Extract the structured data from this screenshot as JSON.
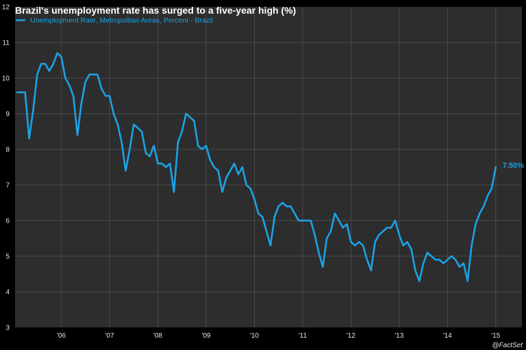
{
  "colors": {
    "background": "#000000",
    "plot_background": "#2d2d2d",
    "grid": "#4a4a4a",
    "series": "#1aa3e8",
    "text": "#e6e6e6",
    "title": "#ffffff"
  },
  "chart_data": {
    "type": "line",
    "title": "Brazil's unemployment rate has surged to a five-year high (%)",
    "xlabel": "",
    "ylabel": "",
    "ylim": [
      3,
      12
    ],
    "grid": true,
    "legend_placement": "top-left",
    "y_ticks": [
      3,
      4,
      5,
      6,
      7,
      8,
      9,
      10,
      11,
      12
    ],
    "x_ticks": [
      {
        "label": "'06",
        "at": "2006-06"
      },
      {
        "label": "'07",
        "at": "2007-06"
      },
      {
        "label": "'08",
        "at": "2008-06"
      },
      {
        "label": "'09",
        "at": "2009-06"
      },
      {
        "label": "'10",
        "at": "2010-06"
      },
      {
        "label": "'11",
        "at": "2011-06"
      },
      {
        "label": "'12",
        "at": "2012-06"
      },
      {
        "label": "'13",
        "at": "2013-06"
      },
      {
        "label": "'14",
        "at": "2014-06"
      },
      {
        "label": "'15",
        "at": "2015-06"
      }
    ],
    "end_label": "7.50%",
    "source": "@FactSet",
    "series": [
      {
        "name": "Unemployment Rate, Metropolitan Areas, Percent - Brazil",
        "x": [
          "2005-07",
          "2005-08",
          "2005-09",
          "2005-10",
          "2005-11",
          "2005-12",
          "2006-01",
          "2006-02",
          "2006-03",
          "2006-04",
          "2006-05",
          "2006-06",
          "2006-07",
          "2006-08",
          "2006-09",
          "2006-10",
          "2006-11",
          "2006-12",
          "2007-01",
          "2007-02",
          "2007-03",
          "2007-04",
          "2007-05",
          "2007-06",
          "2007-07",
          "2007-08",
          "2007-09",
          "2007-10",
          "2007-11",
          "2007-12",
          "2008-01",
          "2008-02",
          "2008-03",
          "2008-04",
          "2008-05",
          "2008-06",
          "2008-07",
          "2008-08",
          "2008-09",
          "2008-10",
          "2008-11",
          "2008-12",
          "2009-01",
          "2009-02",
          "2009-03",
          "2009-04",
          "2009-05",
          "2009-06",
          "2009-07",
          "2009-08",
          "2009-09",
          "2009-10",
          "2009-11",
          "2009-12",
          "2010-01",
          "2010-02",
          "2010-03",
          "2010-04",
          "2010-05",
          "2010-06",
          "2010-07",
          "2010-08",
          "2010-09",
          "2010-10",
          "2010-11",
          "2010-12",
          "2011-01",
          "2011-02",
          "2011-03",
          "2011-04",
          "2011-05",
          "2011-06",
          "2011-07",
          "2011-08",
          "2011-09",
          "2011-10",
          "2011-11",
          "2011-12",
          "2012-01",
          "2012-02",
          "2012-03",
          "2012-04",
          "2012-05",
          "2012-06",
          "2012-07",
          "2012-08",
          "2012-09",
          "2012-10",
          "2012-11",
          "2012-12",
          "2013-01",
          "2013-02",
          "2013-03",
          "2013-04",
          "2013-05",
          "2013-06",
          "2013-07",
          "2013-08",
          "2013-09",
          "2013-10",
          "2013-11",
          "2013-12",
          "2014-01",
          "2014-02",
          "2014-03",
          "2014-04",
          "2014-05",
          "2014-06",
          "2014-07",
          "2014-08",
          "2014-09",
          "2014-10",
          "2014-11",
          "2014-12",
          "2015-01",
          "2015-02",
          "2015-03",
          "2015-04",
          "2015-05",
          "2015-06"
        ],
        "y": [
          9.6,
          9.6,
          9.6,
          8.3,
          9.1,
          10.1,
          10.4,
          10.4,
          10.2,
          10.4,
          10.7,
          10.6,
          10.0,
          9.8,
          9.5,
          8.4,
          9.3,
          9.9,
          10.1,
          10.1,
          10.1,
          9.7,
          9.5,
          9.5,
          9.0,
          8.7,
          8.2,
          7.4,
          8.0,
          8.7,
          8.6,
          8.5,
          7.9,
          7.8,
          8.1,
          7.6,
          7.6,
          7.5,
          7.6,
          6.8,
          8.2,
          8.5,
          9.0,
          8.9,
          8.8,
          8.1,
          8.0,
          8.1,
          7.7,
          7.5,
          7.4,
          6.8,
          7.2,
          7.4,
          7.6,
          7.3,
          7.5,
          7.0,
          6.9,
          6.6,
          6.2,
          6.1,
          5.7,
          5.3,
          6.1,
          6.4,
          6.5,
          6.4,
          6.4,
          6.2,
          6.0,
          6.0,
          6.0,
          6.0,
          5.6,
          5.1,
          4.7,
          5.5,
          5.7,
          6.2,
          6.0,
          5.8,
          5.9,
          5.4,
          5.3,
          5.4,
          5.3,
          4.9,
          4.6,
          5.4,
          5.6,
          5.7,
          5.8,
          5.8,
          6.0,
          5.6,
          5.3,
          5.4,
          5.2,
          4.6,
          4.3,
          4.8,
          5.1,
          5.0,
          4.9,
          4.9,
          4.8,
          4.9,
          5.0,
          4.9,
          4.7,
          4.8,
          4.3,
          5.3,
          5.9,
          6.2,
          6.4,
          6.7,
          6.9,
          7.5
        ]
      }
    ]
  }
}
